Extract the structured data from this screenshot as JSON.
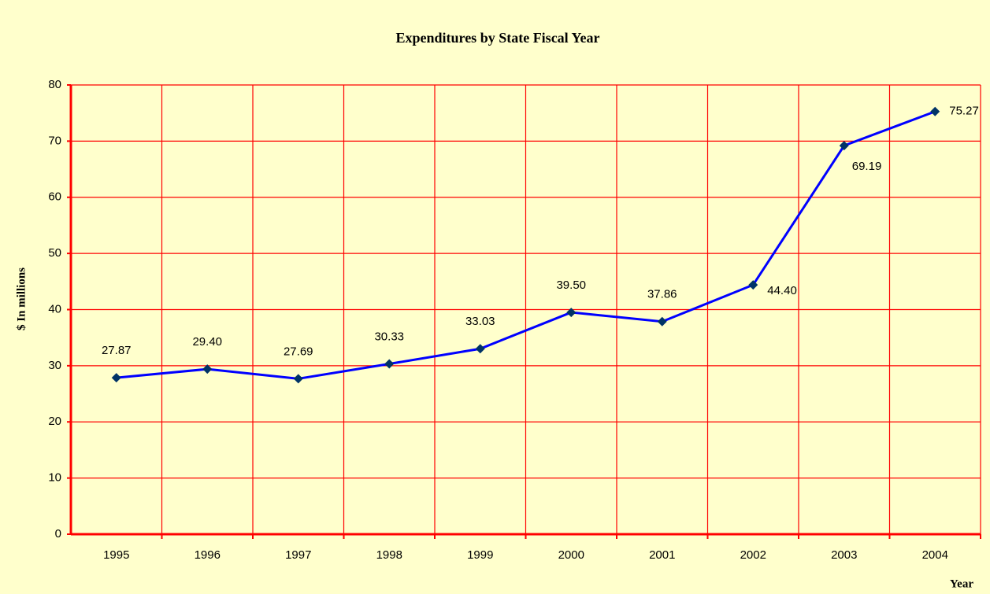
{
  "chart_data": {
    "type": "line",
    "title": "Expenditures by State Fiscal Year",
    "x_label": "Year",
    "y_label": "$ In millions",
    "categories": [
      "1995",
      "1996",
      "1997",
      "1998",
      "1999",
      "2000",
      "2001",
      "2002",
      "2003",
      "2004"
    ],
    "series": [
      {
        "name": "Expenditures",
        "color": "#0000ff",
        "marker_color": "#003366",
        "values": [
          27.87,
          29.4,
          27.69,
          30.33,
          33.03,
          39.5,
          37.86,
          44.4,
          69.19,
          75.27
        ],
        "value_labels": [
          "27.87",
          "29.40",
          "27.69",
          "30.33",
          "33.03",
          "39.50",
          "37.86",
          "44.40",
          "69.19",
          "75.27"
        ]
      }
    ],
    "ylim": [
      0,
      80
    ],
    "yticks": [
      0,
      10,
      20,
      30,
      40,
      50,
      60,
      70,
      80
    ],
    "grid": true,
    "grid_color": "#ff0000",
    "background": "#ffffcc"
  }
}
